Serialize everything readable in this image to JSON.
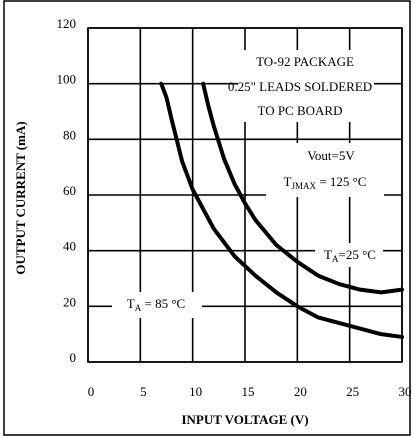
{
  "chart_data": {
    "type": "line",
    "xlabel": "INPUT VOLTAGE (V)",
    "ylabel": "OUTPUT CURRENT (mA)",
    "xlim": [
      0,
      30
    ],
    "xticks": [
      0,
      5,
      10,
      15,
      20,
      25,
      30
    ],
    "ylim": [
      0,
      120
    ],
    "yticks": [
      0,
      20,
      40,
      60,
      80,
      100,
      120
    ],
    "grid": true,
    "series": [
      {
        "color": "#000000",
        "x": [
          7,
          7.5,
          8,
          9,
          10,
          12,
          14,
          16,
          18,
          20,
          22,
          25,
          28,
          30
        ],
        "values": [
          100,
          95,
          87,
          72,
          62,
          48,
          38,
          31,
          25,
          20,
          16,
          13,
          10,
          9
        ]
      },
      {
        "color": "#000000",
        "x": [
          11,
          11.5,
          12,
          13,
          14,
          15,
          16,
          18,
          20,
          22,
          24,
          26,
          28,
          30
        ],
        "values": [
          100,
          92,
          85,
          73,
          64,
          57,
          51,
          42,
          36,
          31,
          28,
          26,
          25,
          26
        ]
      }
    ],
    "annotations": [
      {
        "text": "TO-92 PACKAGE"
      },
      {
        "text": "0.25\" LEADS SOLDERED"
      },
      {
        "text": "TO PC BOARD"
      },
      {
        "text": "Vout=5V"
      },
      {
        "text": "T",
        "sub": "JMAX",
        "after": " = 125 °C"
      },
      {
        "text": "T",
        "sub": "A",
        "after": "=25 °C"
      },
      {
        "text": "T",
        "sub": "A",
        "after": " = 85 °C"
      }
    ]
  }
}
